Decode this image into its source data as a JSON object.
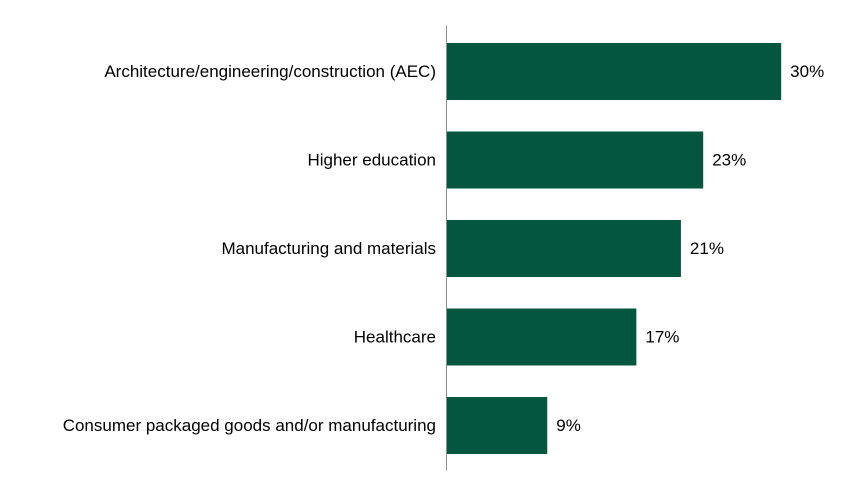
{
  "chart_data": {
    "type": "bar",
    "orientation": "horizontal",
    "categories": [
      "Architecture/engineering/construction (AEC)",
      "Higher education",
      "Manufacturing and materials",
      "Healthcare",
      "Consumer packaged goods and/or manufacturing"
    ],
    "values": [
      30,
      23,
      21,
      17,
      9
    ],
    "value_labels": [
      "30%",
      "23%",
      "21%",
      "17%",
      "9%"
    ],
    "unit": "%",
    "xlim": [
      0,
      36
    ],
    "bar_color": "#04563e",
    "grid": false,
    "legend": "none"
  }
}
